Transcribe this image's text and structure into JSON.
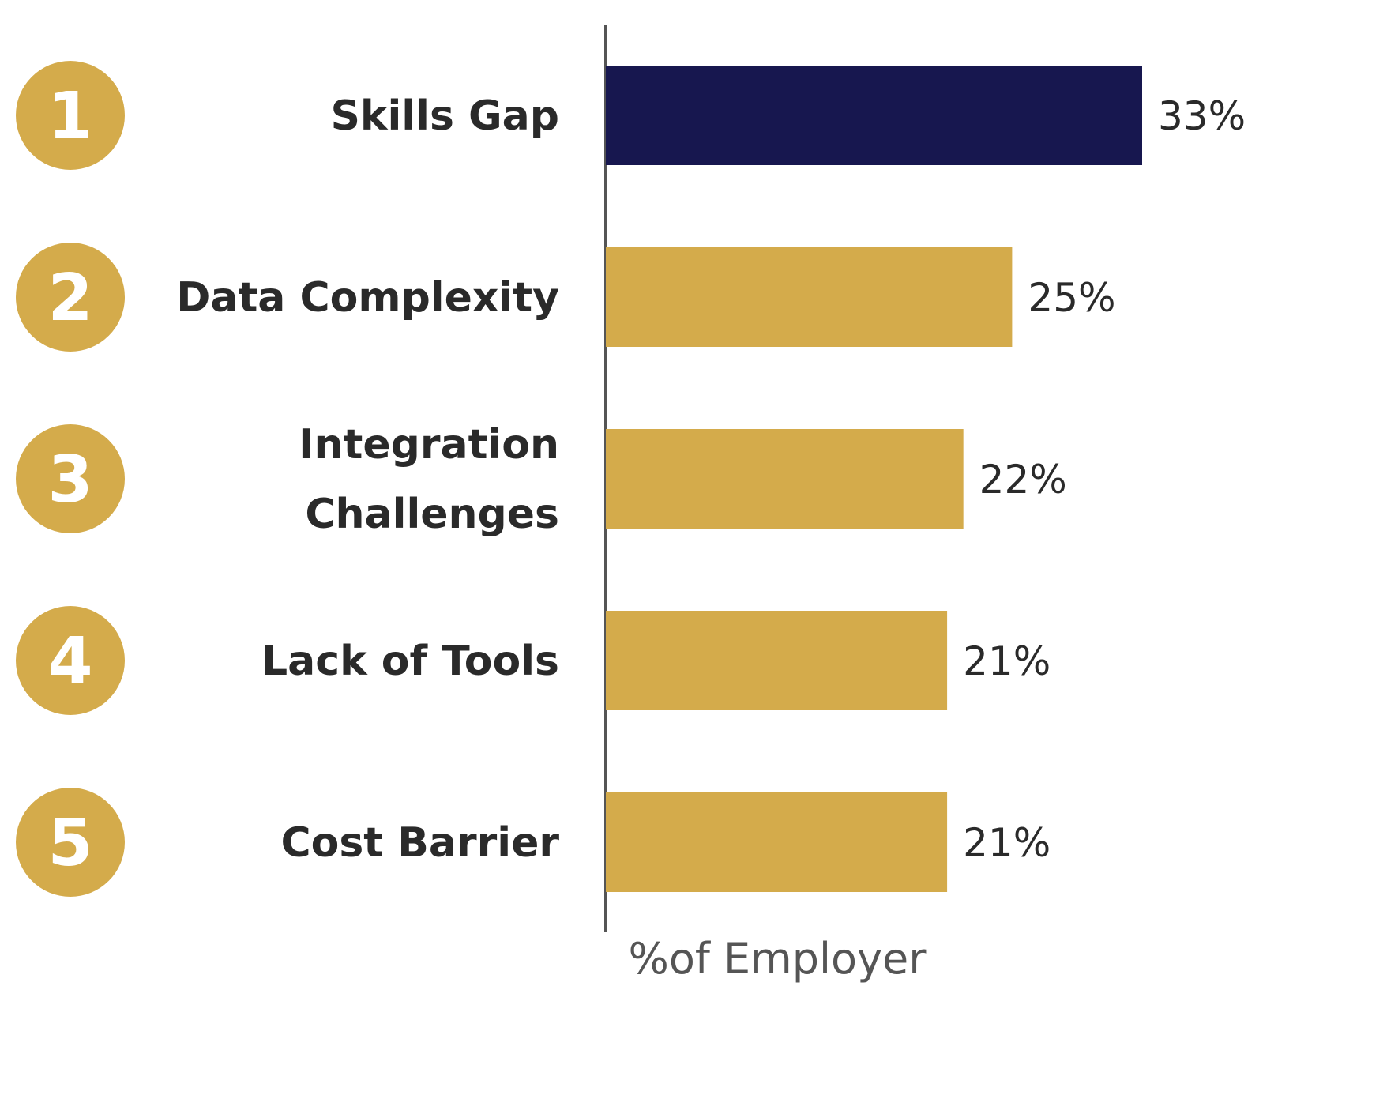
{
  "chart_data": {
    "type": "bar",
    "orientation": "horizontal",
    "ranks": [
      "1",
      "2",
      "3",
      "4",
      "5"
    ],
    "categories": [
      [
        "Skills Gap"
      ],
      [
        "Data Complexity"
      ],
      [
        "Integration",
        "Challenges"
      ],
      [
        "Lack of Tools"
      ],
      [
        "Cost Barrier"
      ]
    ],
    "values": [
      33,
      25,
      22,
      21,
      21
    ],
    "value_labels": [
      "33%",
      "25%",
      "22%",
      "21%",
      "21%"
    ],
    "xlabel": "%of Employer",
    "ylabel": "",
    "xlim": [
      0,
      33
    ],
    "grid": false,
    "colors": {
      "highlight": "#17174f",
      "bar": "#d4ab4b",
      "circle": "#d4ab4b",
      "axis": "#555555"
    },
    "highlight_index": 0
  }
}
